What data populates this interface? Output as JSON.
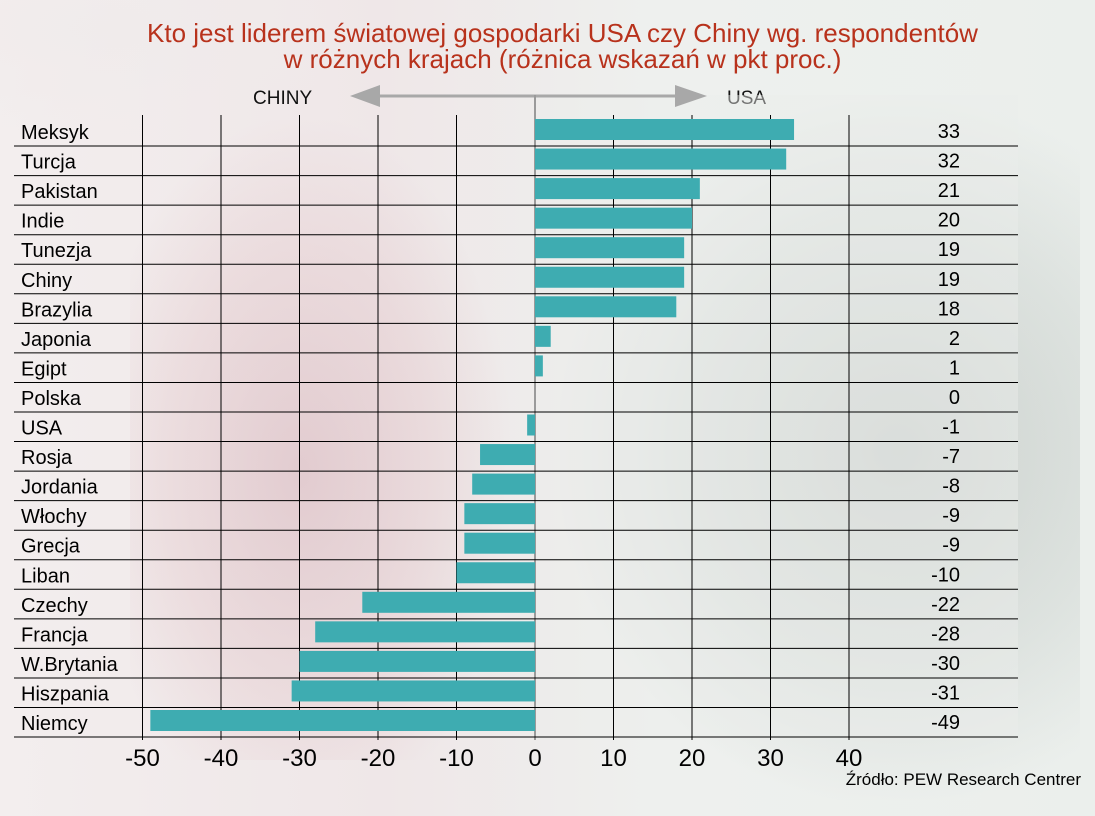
{
  "title_line1": "Kto jest liderem światowej gospodarki USA czy Chiny wg. respondentów",
  "title_line2": "w różnych krajach (różnica wskazań w pkt proc.)",
  "left_label": "CHINY",
  "right_label": "USA",
  "source": "Źródło: PEW Research Centrer",
  "colors": {
    "bar": "#3eacb1",
    "title": "#b8321c",
    "grid": "#000000",
    "arrow": "#a8a8a8"
  },
  "chart_data": {
    "type": "bar",
    "orientation": "horizontal",
    "categories": [
      "Meksyk",
      "Turcja",
      "Pakistan",
      "Indie",
      "Tunezja",
      "Chiny",
      "Brazylia",
      "Japonia",
      "Egipt",
      "Polska",
      "USA",
      "Rosja",
      "Jordania",
      "Włochy",
      "Grecja",
      "Liban",
      "Czechy",
      "Francja",
      "W.Brytania",
      "Hiszpania",
      "Niemcy"
    ],
    "values": [
      33,
      32,
      21,
      20,
      19,
      19,
      18,
      2,
      1,
      0,
      -1,
      -7,
      -8,
      -9,
      -9,
      -10,
      -22,
      -28,
      -30,
      -31,
      -49
    ],
    "value_labels": [
      "33",
      "32",
      "21",
      "20",
      "19",
      "19",
      "18",
      "2",
      "1",
      "0",
      "-1",
      "-7",
      "-8",
      "-9",
      "-9",
      "-10",
      "-22",
      "-28",
      "-30",
      "-31",
      "-49"
    ],
    "xlim": [
      -50,
      40
    ],
    "xticks": [
      "-50",
      "-40",
      "-30",
      "-20",
      "-10",
      "0",
      "10",
      "20",
      "30",
      "40"
    ],
    "grid": true
  }
}
